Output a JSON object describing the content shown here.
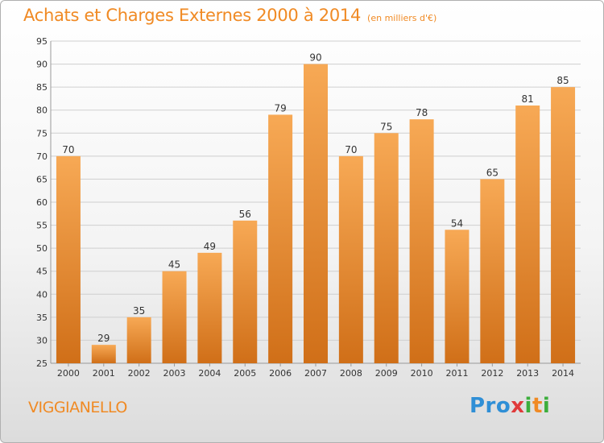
{
  "title": "Achats et Charges Externes 2000 à 2014",
  "subtitle": "(en milliers d'€)",
  "town": "VIGGIANELLO",
  "logo": {
    "p1": "Pro",
    "p2": "x",
    "p3": "i",
    "p4": "t",
    "p5": "i"
  },
  "colors": {
    "bar_top": "#f7a955",
    "bar_bottom": "#d06f18",
    "accent": "#f08a24",
    "grid": "#cfcfcf"
  },
  "chart_data": {
    "type": "bar",
    "categories": [
      "2000",
      "2001",
      "2002",
      "2003",
      "2004",
      "2005",
      "2006",
      "2007",
      "2008",
      "2009",
      "2010",
      "2011",
      "2012",
      "2013",
      "2014"
    ],
    "values": [
      70,
      29,
      35,
      45,
      49,
      56,
      79,
      90,
      70,
      75,
      78,
      54,
      65,
      81,
      85
    ],
    "ylim": [
      25,
      95
    ],
    "yticks": [
      25,
      30,
      35,
      40,
      45,
      50,
      55,
      60,
      65,
      70,
      75,
      80,
      85,
      90,
      95
    ],
    "grid": true,
    "legend": "none"
  }
}
